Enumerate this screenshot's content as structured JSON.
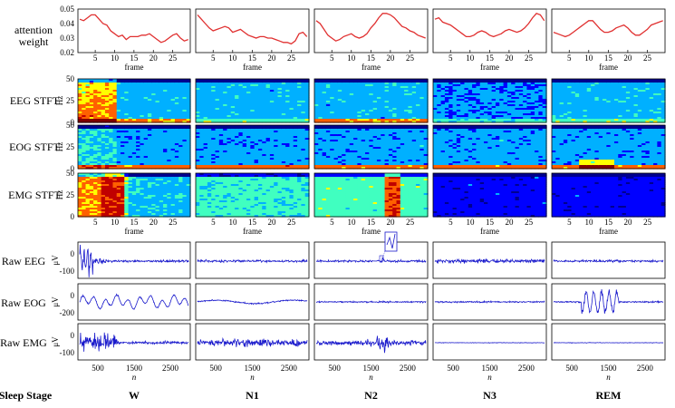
{
  "row_labels": {
    "attention": [
      "attention",
      "weight"
    ],
    "eeg_stft": "EEG STFT",
    "eog_stft": "EOG STFT",
    "emg_stft": "EMG STFT",
    "raw_eeg": "Raw EEG",
    "raw_eog": "Raw EOG",
    "raw_emg": "Raw EMG",
    "sleep_stage": "Sleep Stage"
  },
  "axis_labels": {
    "frame": "frame",
    "hz": "Hz",
    "uv": "μV",
    "n": "n"
  },
  "colors": {
    "attention_line": "#e03030",
    "attention_label": "#e03030",
    "raw_signal": "#1a1acc"
  },
  "chart_data": {
    "type": "line",
    "stages": [
      "W",
      "N1",
      "N2",
      "N3",
      "REM"
    ],
    "attention_weight": {
      "x_label": "frame",
      "x_range": [
        1,
        29
      ],
      "x_ticks": [
        5,
        10,
        15,
        20,
        25
      ],
      "y_range": [
        0.02,
        0.05
      ],
      "y_ticks": [
        "0.05",
        "0.04",
        "0.03",
        "0.02"
      ],
      "series": [
        {
          "stage": "W",
          "values": [
            0.043,
            0.042,
            0.044,
            0.046,
            0.046,
            0.043,
            0.04,
            0.039,
            0.035,
            0.033,
            0.031,
            0.032,
            0.029,
            0.031,
            0.031,
            0.031,
            0.032,
            0.032,
            0.033,
            0.031,
            0.029,
            0.027,
            0.028,
            0.03,
            0.032,
            0.033,
            0.03,
            0.028,
            0.029
          ]
        },
        {
          "stage": "N1",
          "values": [
            0.046,
            0.043,
            0.04,
            0.037,
            0.035,
            0.036,
            0.037,
            0.038,
            0.037,
            0.034,
            0.035,
            0.036,
            0.034,
            0.032,
            0.031,
            0.03,
            0.031,
            0.031,
            0.03,
            0.03,
            0.029,
            0.028,
            0.027,
            0.027,
            0.026,
            0.028,
            0.033,
            0.034,
            0.031
          ]
        },
        {
          "stage": "N2",
          "values": [
            0.042,
            0.04,
            0.036,
            0.032,
            0.03,
            0.028,
            0.029,
            0.031,
            0.032,
            0.033,
            0.031,
            0.03,
            0.031,
            0.033,
            0.037,
            0.04,
            0.044,
            0.047,
            0.047,
            0.046,
            0.044,
            0.041,
            0.038,
            0.037,
            0.035,
            0.034,
            0.032,
            0.031,
            0.03
          ]
        },
        {
          "stage": "N3",
          "values": [
            0.043,
            0.044,
            0.041,
            0.04,
            0.039,
            0.037,
            0.035,
            0.033,
            0.031,
            0.031,
            0.032,
            0.034,
            0.035,
            0.034,
            0.032,
            0.031,
            0.032,
            0.033,
            0.035,
            0.036,
            0.035,
            0.034,
            0.035,
            0.037,
            0.04,
            0.044,
            0.047,
            0.046,
            0.042
          ]
        },
        {
          "stage": "REM",
          "values": [
            0.034,
            0.033,
            0.032,
            0.031,
            0.032,
            0.034,
            0.036,
            0.038,
            0.04,
            0.042,
            0.042,
            0.039,
            0.036,
            0.034,
            0.034,
            0.035,
            0.037,
            0.038,
            0.039,
            0.037,
            0.034,
            0.032,
            0.032,
            0.034,
            0.036,
            0.039,
            0.04,
            0.041,
            0.042
          ]
        }
      ]
    },
    "stft": {
      "x_label": "frame",
      "x_ticks": [
        5,
        10,
        15,
        20,
        25
      ],
      "y_label": "Hz",
      "y_range": [
        0,
        50
      ],
      "y_ticks": [
        0,
        25,
        50
      ],
      "color_scale": [
        "#00008f",
        "#0000ff",
        "#00b0ff",
        "#40ffc0",
        "#ffff00",
        "#ff6000",
        "#c00000",
        "#800000"
      ]
    },
    "raw": {
      "x_label": "n",
      "x_ticks": [
        500,
        1500,
        2500
      ],
      "x_range": [
        1,
        3000
      ],
      "y_label": "μV",
      "eeg_y_ticks": [
        0,
        -100
      ],
      "eog_y_ticks": [
        0,
        -200
      ],
      "emg_y_ticks": [
        0,
        -100
      ]
    }
  }
}
